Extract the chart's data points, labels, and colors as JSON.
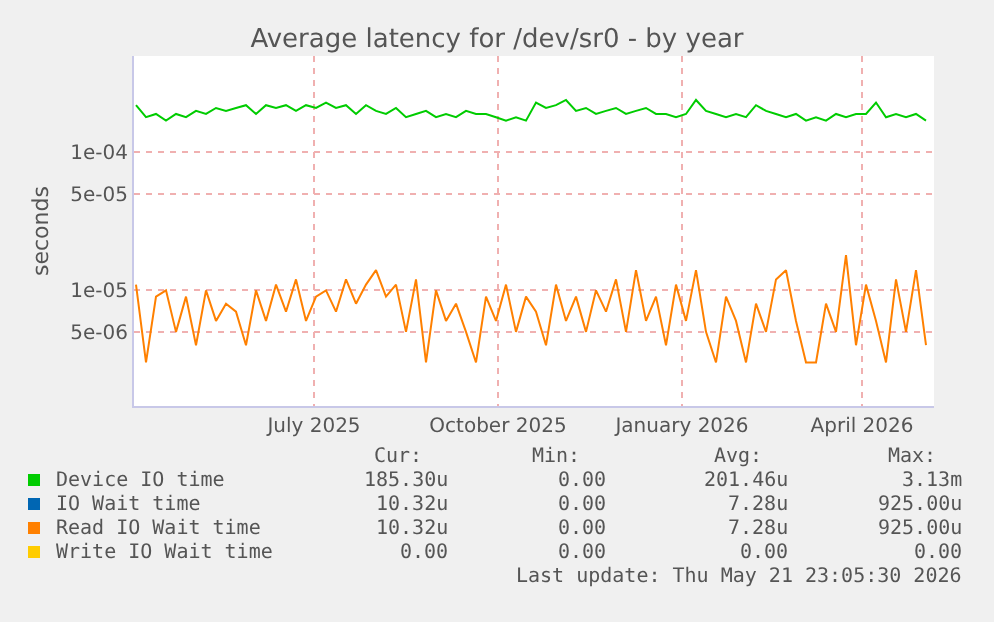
{
  "chart_data": {
    "type": "line",
    "title": "Average latency for /dev/sr0 - by year",
    "ylabel": "seconds",
    "log": "y",
    "grid": true,
    "legend": "bottom",
    "marker": "none",
    "line_style": "solid",
    "xlim": [
      "2025-04-17",
      "2026-05-22"
    ],
    "xticks": [
      {
        "value": "2025-07-16",
        "label": "July 2025"
      },
      {
        "value": "2025-10-16",
        "label": "October 2025"
      },
      {
        "value": "2026-01-16",
        "label": "January 2026"
      },
      {
        "value": "2026-04-16",
        "label": "April 2026"
      }
    ],
    "ylim": [
      1.45e-06,
      0.0005
    ],
    "yticks": [
      {
        "value": 5e-06,
        "label": "5e-06"
      },
      {
        "value": 1e-05,
        "label": "1e-05"
      },
      {
        "value": 5e-05,
        "label": "5e-05"
      },
      {
        "value": 0.0001,
        "label": "1e-04"
      }
    ],
    "x": [
      "2025-04-18",
      "2025-04-23",
      "2025-04-28",
      "2025-05-03",
      "2025-05-08",
      "2025-05-13",
      "2025-05-18",
      "2025-05-23",
      "2025-05-28",
      "2025-06-02",
      "2025-06-07",
      "2025-06-12",
      "2025-06-17",
      "2025-06-22",
      "2025-06-27",
      "2025-07-02",
      "2025-07-07",
      "2025-07-12",
      "2025-07-17",
      "2025-07-22",
      "2025-07-27",
      "2025-08-01",
      "2025-08-06",
      "2025-08-11",
      "2025-08-16",
      "2025-08-21",
      "2025-08-26",
      "2025-08-31",
      "2025-09-05",
      "2025-09-10",
      "2025-09-15",
      "2025-09-20",
      "2025-09-25",
      "2025-09-30",
      "2025-10-05",
      "2025-10-10",
      "2025-10-15",
      "2025-10-20",
      "2025-10-25",
      "2025-10-30",
      "2025-11-04",
      "2025-11-09",
      "2025-11-14",
      "2025-11-19",
      "2025-11-24",
      "2025-11-29",
      "2025-12-04",
      "2025-12-09",
      "2025-12-14",
      "2025-12-19",
      "2025-12-24",
      "2025-12-29",
      "2026-01-03",
      "2026-01-08",
      "2026-01-13",
      "2026-01-18",
      "2026-01-23",
      "2026-01-28",
      "2026-02-02",
      "2026-02-07",
      "2026-02-12",
      "2026-02-17",
      "2026-02-22",
      "2026-02-27",
      "2026-03-04",
      "2026-03-09",
      "2026-03-14",
      "2026-03-19",
      "2026-03-24",
      "2026-03-29",
      "2026-04-03",
      "2026-04-08",
      "2026-04-13",
      "2026-04-18",
      "2026-04-23",
      "2026-04-28",
      "2026-05-03",
      "2026-05-08",
      "2026-05-13",
      "2026-05-18"
    ],
    "series": [
      {
        "name": "Device IO time",
        "color": "#00cc00",
        "values": [
          0.00022,
          0.00018,
          0.00019,
          0.00017,
          0.00019,
          0.00018,
          0.0002,
          0.00019,
          0.00021,
          0.0002,
          0.00021,
          0.00022,
          0.00019,
          0.00022,
          0.00021,
          0.00022,
          0.0002,
          0.00022,
          0.00021,
          0.00023,
          0.00021,
          0.00022,
          0.00019,
          0.00022,
          0.0002,
          0.00019,
          0.00021,
          0.00018,
          0.00019,
          0.0002,
          0.00018,
          0.00019,
          0.00018,
          0.0002,
          0.00019,
          0.00019,
          0.00018,
          0.00017,
          0.00018,
          0.00017,
          0.00023,
          0.00021,
          0.00022,
          0.00024,
          0.0002,
          0.00021,
          0.00019,
          0.0002,
          0.00021,
          0.00019,
          0.0002,
          0.00021,
          0.00019,
          0.00019,
          0.00018,
          0.00019,
          0.00024,
          0.0002,
          0.00019,
          0.00018,
          0.00019,
          0.00018,
          0.00022,
          0.0002,
          0.00019,
          0.00018,
          0.00019,
          0.00017,
          0.00018,
          0.00017,
          0.00019,
          0.00018,
          0.00019,
          0.00019,
          0.00023,
          0.00018,
          0.00019,
          0.00018,
          0.00019,
          0.00017
        ]
      },
      {
        "name": "IO Wait time",
        "color": "#0066b3",
        "values": [
          null,
          null,
          null,
          null,
          null,
          null,
          null,
          null,
          null,
          null,
          null,
          null,
          null,
          null,
          null,
          null,
          null,
          null,
          null,
          null,
          null,
          null,
          null,
          null,
          null,
          null,
          null,
          null,
          null,
          null,
          null,
          null,
          null,
          null,
          null,
          null,
          null,
          null,
          null,
          null,
          null,
          null,
          null,
          null,
          null,
          null,
          null,
          null,
          null,
          null,
          null,
          null,
          null,
          null,
          null,
          null,
          null,
          null,
          null,
          null,
          null,
          null,
          null,
          null,
          null,
          null,
          null,
          null,
          null,
          null,
          null,
          null,
          null,
          null,
          null,
          null,
          null,
          null,
          null,
          null
        ]
      },
      {
        "name": "Read IO Wait time",
        "color": "#ff8000",
        "values": [
          1.1e-05,
          3e-06,
          9e-06,
          1e-05,
          5e-06,
          9e-06,
          4e-06,
          1e-05,
          6e-06,
          8e-06,
          7e-06,
          4e-06,
          1e-05,
          6e-06,
          1.1e-05,
          7e-06,
          1.2e-05,
          6e-06,
          9e-06,
          1e-05,
          7e-06,
          1.2e-05,
          8e-06,
          1.1e-05,
          1.4e-05,
          9e-06,
          1.1e-05,
          5e-06,
          1.2e-05,
          3e-06,
          1e-05,
          6e-06,
          8e-06,
          5e-06,
          3e-06,
          9e-06,
          6e-06,
          1.1e-05,
          5e-06,
          9e-06,
          7e-06,
          4e-06,
          1.1e-05,
          6e-06,
          9e-06,
          5e-06,
          1e-05,
          7e-06,
          1.2e-05,
          5e-06,
          1.4e-05,
          6e-06,
          9e-06,
          4e-06,
          1.1e-05,
          6e-06,
          1.4e-05,
          5e-06,
          3e-06,
          9e-06,
          6e-06,
          3e-06,
          8e-06,
          5e-06,
          1.2e-05,
          1.4e-05,
          6e-06,
          3e-06,
          3e-06,
          8e-06,
          5e-06,
          1.8e-05,
          4e-06,
          1.1e-05,
          6e-06,
          3e-06,
          1.2e-05,
          5e-06,
          1.4e-05,
          4e-06
        ]
      },
      {
        "name": "Write IO Wait time",
        "color": "#ffcc00",
        "values": [
          null,
          null,
          null,
          null,
          null,
          null,
          null,
          null,
          null,
          null,
          null,
          null,
          null,
          null,
          null,
          null,
          null,
          null,
          null,
          null,
          null,
          null,
          null,
          null,
          null,
          null,
          null,
          null,
          null,
          null,
          null,
          null,
          null,
          null,
          null,
          null,
          null,
          null,
          null,
          null,
          null,
          null,
          null,
          null,
          null,
          null,
          null,
          null,
          null,
          null,
          null,
          null,
          null,
          null,
          null,
          null,
          null,
          null,
          null,
          null,
          null,
          null,
          null,
          null,
          null,
          null,
          null,
          null,
          null,
          null,
          null,
          null,
          null,
          null,
          null,
          null,
          null,
          null,
          null,
          null
        ]
      }
    ],
    "annotations": [
      "Cur:",
      "Min:",
      "Avg:",
      "Max:",
      "185.30u",
      "0.00",
      "201.46u",
      "3.13m",
      "10.32u",
      "0.00",
      "7.28u",
      "925.00u",
      "10.32u",
      "0.00",
      "7.28u",
      "925.00u",
      "0.00",
      "0.00",
      "0.00",
      "0.00",
      "Last update: Thu May 21 23:05:30 2026"
    ]
  }
}
